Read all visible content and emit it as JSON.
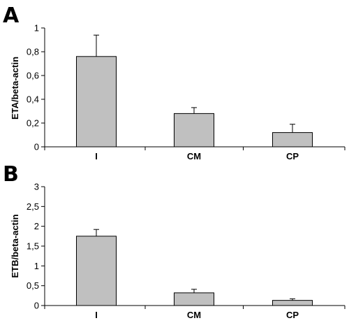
{
  "chart_data": [
    {
      "type": "bar",
      "panel_label": "A",
      "categories": [
        "I",
        "CM",
        "CP"
      ],
      "values": [
        0.76,
        0.28,
        0.12
      ],
      "error": [
        0.18,
        0.05,
        0.07
      ],
      "ylabel": "ETA/beta-actin",
      "ylim": [
        0,
        1
      ],
      "yticks": [
        "0",
        "0,2",
        "0,4",
        "0,6",
        "0,8",
        "1"
      ],
      "ytick_values": [
        0,
        0.2,
        0.4,
        0.6,
        0.8,
        1
      ],
      "grid": false,
      "bar_color": "#c0c0c0"
    },
    {
      "type": "bar",
      "panel_label": "B",
      "categories": [
        "I",
        "CM",
        "CP"
      ],
      "values": [
        1.75,
        0.32,
        0.13
      ],
      "error": [
        0.17,
        0.09,
        0.04
      ],
      "ylabel": "ETB/beta-actin",
      "ylim": [
        0,
        3
      ],
      "yticks": [
        "0",
        "0,5",
        "1",
        "1,5",
        "2",
        "2,5",
        "3"
      ],
      "ytick_values": [
        0,
        0.5,
        1,
        1.5,
        2,
        2.5,
        3
      ],
      "grid": false,
      "bar_color": "#c0c0c0"
    }
  ]
}
